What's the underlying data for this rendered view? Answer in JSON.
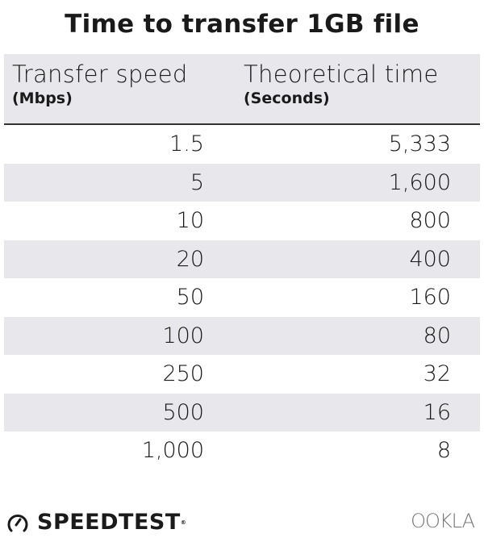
{
  "chart_data": {
    "type": "table",
    "title": "Time to transfer 1GB file",
    "columns": [
      {
        "label": "Transfer speed",
        "unit": "(Mbps)"
      },
      {
        "label": "Theoretical time",
        "unit": "(Seconds)"
      }
    ],
    "rows": [
      [
        "1.5",
        "5,333"
      ],
      [
        "5",
        "1,600"
      ],
      [
        "10",
        "800"
      ],
      [
        "20",
        "400"
      ],
      [
        "50",
        "160"
      ],
      [
        "100",
        "80"
      ],
      [
        "250",
        "32"
      ],
      [
        "500",
        "16"
      ],
      [
        "1,000",
        "8"
      ]
    ]
  },
  "footer": {
    "speedtest_logo": "SPEEDTEST",
    "registered": "®",
    "ookla_logo": "OOKLA"
  },
  "colors": {
    "row_alt": "#e8e8ec",
    "text": "#1a1a1a",
    "ookla": "#777777"
  },
  "icons": {
    "speedtest": "gauge-icon"
  }
}
